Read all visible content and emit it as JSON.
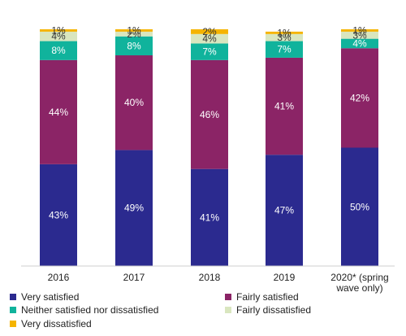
{
  "chart_data": {
    "type": "bar",
    "stacked": true,
    "categories": [
      "2016",
      "2017",
      "2018",
      "2019",
      "2020* (spring wave only)"
    ],
    "category_lines": [
      [
        "2016"
      ],
      [
        "2017"
      ],
      [
        "2018"
      ],
      [
        "2019"
      ],
      [
        "2020* (spring",
        "wave only)"
      ]
    ],
    "ylim": [
      0,
      100
    ],
    "grid": false,
    "legend_position": "bottom",
    "series": [
      {
        "name": "Very satisfied",
        "color": "#2b2a8f",
        "label_color": "#ffffff",
        "values": [
          43,
          49,
          41,
          47,
          50
        ],
        "labels": [
          "43%",
          "49%",
          "41%",
          "47%",
          "50%"
        ]
      },
      {
        "name": "Fairly satisfied",
        "color": "#8b2466",
        "label_color": "#ffffff",
        "values": [
          44,
          40,
          46,
          41,
          42
        ],
        "labels": [
          "44%",
          "40%",
          "46%",
          "41%",
          "42%"
        ]
      },
      {
        "name": "Neither satisfied nor dissatisfied",
        "color": "#10b39c",
        "label_color": "#ffffff",
        "values": [
          8,
          8,
          7,
          7,
          4
        ],
        "labels": [
          "8%",
          "8%",
          "7%",
          "7%",
          "4%"
        ]
      },
      {
        "name": "Fairly dissatisfied",
        "color": "#d9e6bf",
        "label_color": "#333333",
        "values": [
          4,
          2,
          4,
          3,
          3
        ],
        "labels": [
          "4%",
          "2%",
          "4%",
          "3%",
          "3%"
        ]
      },
      {
        "name": "Very dissatisfied",
        "color": "#f5b400",
        "label_color": "#333333",
        "values": [
          1,
          1,
          2,
          1,
          1
        ],
        "labels": [
          "1%",
          "1%",
          "2%",
          "1%",
          "1%"
        ]
      }
    ]
  }
}
